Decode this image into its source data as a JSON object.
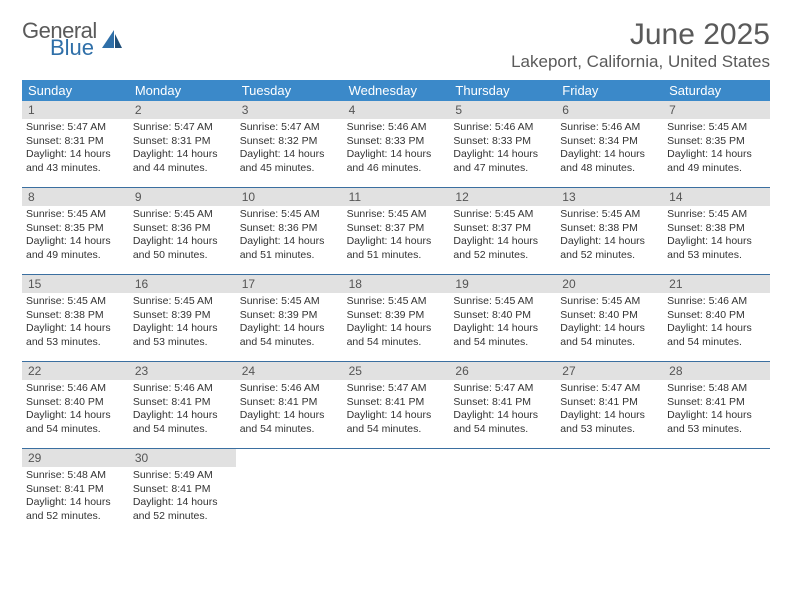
{
  "logo": {
    "general": "General",
    "blue": "Blue"
  },
  "title": "June 2025",
  "location": "Lakeport, California, United States",
  "colors": {
    "header_bg": "#3b89c9",
    "header_text": "#ffffff",
    "daynum_bg": "#e1e1e1",
    "daynum_text": "#555555",
    "border": "#3b6fa0",
    "logo_blue": "#2f6fa8",
    "logo_gray": "#5a5a5a"
  },
  "weekdays": [
    "Sunday",
    "Monday",
    "Tuesday",
    "Wednesday",
    "Thursday",
    "Friday",
    "Saturday"
  ],
  "weeks": [
    [
      {
        "day": "1",
        "sunrise": "Sunrise: 5:47 AM",
        "sunset": "Sunset: 8:31 PM",
        "daylight": "Daylight: 14 hours and 43 minutes."
      },
      {
        "day": "2",
        "sunrise": "Sunrise: 5:47 AM",
        "sunset": "Sunset: 8:31 PM",
        "daylight": "Daylight: 14 hours and 44 minutes."
      },
      {
        "day": "3",
        "sunrise": "Sunrise: 5:47 AM",
        "sunset": "Sunset: 8:32 PM",
        "daylight": "Daylight: 14 hours and 45 minutes."
      },
      {
        "day": "4",
        "sunrise": "Sunrise: 5:46 AM",
        "sunset": "Sunset: 8:33 PM",
        "daylight": "Daylight: 14 hours and 46 minutes."
      },
      {
        "day": "5",
        "sunrise": "Sunrise: 5:46 AM",
        "sunset": "Sunset: 8:33 PM",
        "daylight": "Daylight: 14 hours and 47 minutes."
      },
      {
        "day": "6",
        "sunrise": "Sunrise: 5:46 AM",
        "sunset": "Sunset: 8:34 PM",
        "daylight": "Daylight: 14 hours and 48 minutes."
      },
      {
        "day": "7",
        "sunrise": "Sunrise: 5:45 AM",
        "sunset": "Sunset: 8:35 PM",
        "daylight": "Daylight: 14 hours and 49 minutes."
      }
    ],
    [
      {
        "day": "8",
        "sunrise": "Sunrise: 5:45 AM",
        "sunset": "Sunset: 8:35 PM",
        "daylight": "Daylight: 14 hours and 49 minutes."
      },
      {
        "day": "9",
        "sunrise": "Sunrise: 5:45 AM",
        "sunset": "Sunset: 8:36 PM",
        "daylight": "Daylight: 14 hours and 50 minutes."
      },
      {
        "day": "10",
        "sunrise": "Sunrise: 5:45 AM",
        "sunset": "Sunset: 8:36 PM",
        "daylight": "Daylight: 14 hours and 51 minutes."
      },
      {
        "day": "11",
        "sunrise": "Sunrise: 5:45 AM",
        "sunset": "Sunset: 8:37 PM",
        "daylight": "Daylight: 14 hours and 51 minutes."
      },
      {
        "day": "12",
        "sunrise": "Sunrise: 5:45 AM",
        "sunset": "Sunset: 8:37 PM",
        "daylight": "Daylight: 14 hours and 52 minutes."
      },
      {
        "day": "13",
        "sunrise": "Sunrise: 5:45 AM",
        "sunset": "Sunset: 8:38 PM",
        "daylight": "Daylight: 14 hours and 52 minutes."
      },
      {
        "day": "14",
        "sunrise": "Sunrise: 5:45 AM",
        "sunset": "Sunset: 8:38 PM",
        "daylight": "Daylight: 14 hours and 53 minutes."
      }
    ],
    [
      {
        "day": "15",
        "sunrise": "Sunrise: 5:45 AM",
        "sunset": "Sunset: 8:38 PM",
        "daylight": "Daylight: 14 hours and 53 minutes."
      },
      {
        "day": "16",
        "sunrise": "Sunrise: 5:45 AM",
        "sunset": "Sunset: 8:39 PM",
        "daylight": "Daylight: 14 hours and 53 minutes."
      },
      {
        "day": "17",
        "sunrise": "Sunrise: 5:45 AM",
        "sunset": "Sunset: 8:39 PM",
        "daylight": "Daylight: 14 hours and 54 minutes."
      },
      {
        "day": "18",
        "sunrise": "Sunrise: 5:45 AM",
        "sunset": "Sunset: 8:39 PM",
        "daylight": "Daylight: 14 hours and 54 minutes."
      },
      {
        "day": "19",
        "sunrise": "Sunrise: 5:45 AM",
        "sunset": "Sunset: 8:40 PM",
        "daylight": "Daylight: 14 hours and 54 minutes."
      },
      {
        "day": "20",
        "sunrise": "Sunrise: 5:45 AM",
        "sunset": "Sunset: 8:40 PM",
        "daylight": "Daylight: 14 hours and 54 minutes."
      },
      {
        "day": "21",
        "sunrise": "Sunrise: 5:46 AM",
        "sunset": "Sunset: 8:40 PM",
        "daylight": "Daylight: 14 hours and 54 minutes."
      }
    ],
    [
      {
        "day": "22",
        "sunrise": "Sunrise: 5:46 AM",
        "sunset": "Sunset: 8:40 PM",
        "daylight": "Daylight: 14 hours and 54 minutes."
      },
      {
        "day": "23",
        "sunrise": "Sunrise: 5:46 AM",
        "sunset": "Sunset: 8:41 PM",
        "daylight": "Daylight: 14 hours and 54 minutes."
      },
      {
        "day": "24",
        "sunrise": "Sunrise: 5:46 AM",
        "sunset": "Sunset: 8:41 PM",
        "daylight": "Daylight: 14 hours and 54 minutes."
      },
      {
        "day": "25",
        "sunrise": "Sunrise: 5:47 AM",
        "sunset": "Sunset: 8:41 PM",
        "daylight": "Daylight: 14 hours and 54 minutes."
      },
      {
        "day": "26",
        "sunrise": "Sunrise: 5:47 AM",
        "sunset": "Sunset: 8:41 PM",
        "daylight": "Daylight: 14 hours and 54 minutes."
      },
      {
        "day": "27",
        "sunrise": "Sunrise: 5:47 AM",
        "sunset": "Sunset: 8:41 PM",
        "daylight": "Daylight: 14 hours and 53 minutes."
      },
      {
        "day": "28",
        "sunrise": "Sunrise: 5:48 AM",
        "sunset": "Sunset: 8:41 PM",
        "daylight": "Daylight: 14 hours and 53 minutes."
      }
    ],
    [
      {
        "day": "29",
        "sunrise": "Sunrise: 5:48 AM",
        "sunset": "Sunset: 8:41 PM",
        "daylight": "Daylight: 14 hours and 52 minutes."
      },
      {
        "day": "30",
        "sunrise": "Sunrise: 5:49 AM",
        "sunset": "Sunset: 8:41 PM",
        "daylight": "Daylight: 14 hours and 52 minutes."
      },
      null,
      null,
      null,
      null,
      null
    ]
  ]
}
